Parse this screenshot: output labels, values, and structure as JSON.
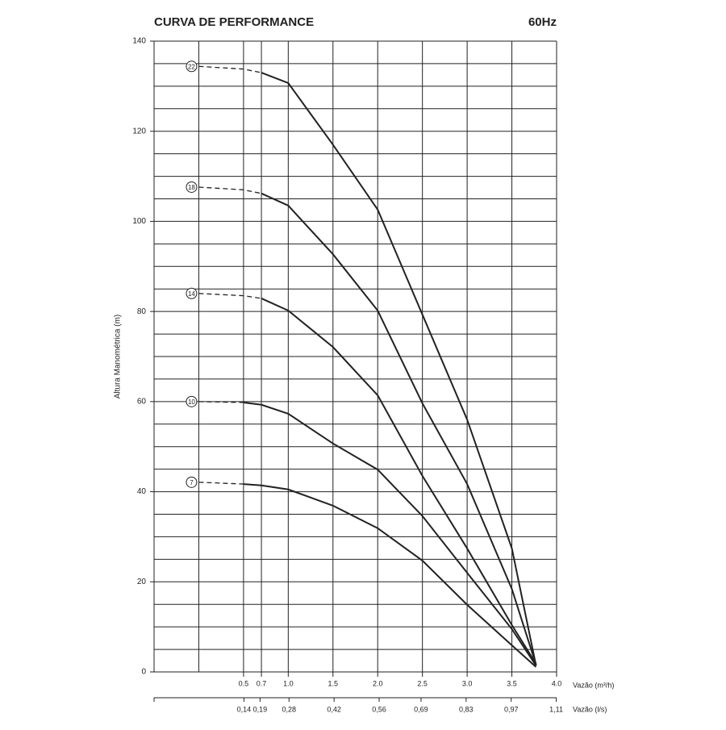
{
  "chart_data": {
    "type": "line",
    "title": "CURVA DE PERFORMANCE",
    "subtitle": "60Hz",
    "y_label": "Altura Manométrica (m)",
    "x_label": "Vazão (m³/h)",
    "x2_label": "Vazão (l/s)",
    "xlim": [
      -0.5,
      4.0
    ],
    "xticks": [
      0.5,
      0.7,
      {
        "value": 1,
        "label": "1.0"
      },
      1.5,
      {
        "value": 2,
        "label": "2.0"
      },
      2.5,
      {
        "value": 3,
        "label": "3.0"
      },
      3.5,
      {
        "value": 4,
        "label": "4.0"
      }
    ],
    "x_extra_grid": [
      0
    ],
    "x2lim": [
      -0.139,
      1.111
    ],
    "x2ticks": [
      {
        "value": 0.14,
        "label": "0,14"
      },
      {
        "value": 0.19,
        "label": "0,19"
      },
      {
        "value": 0.28,
        "label": "0,28"
      },
      {
        "value": 0.42,
        "label": "0,42"
      },
      {
        "value": 0.56,
        "label": "0,56"
      },
      {
        "value": 0.69,
        "label": "0,69"
      },
      {
        "value": 0.83,
        "label": "0,83"
      },
      {
        "value": 0.97,
        "label": "0,97"
      },
      {
        "value": 1.11,
        "label": "1,11"
      }
    ],
    "ylim": [
      0,
      140
    ],
    "yticks": [
      0,
      20,
      40,
      60,
      80,
      100,
      120,
      140
    ],
    "y_grid_step": 5,
    "grid": true,
    "x": [
      0,
      0.5,
      0.7,
      1.0,
      1.5,
      2.0,
      2.5,
      3.0,
      3.5,
      3.77
    ],
    "series": [
      {
        "name": "22",
        "color": "#222222",
        "dash_to": 0.7,
        "values": [
          134.4,
          133.8,
          133,
          130.7,
          117,
          102.6,
          79.3,
          56,
          27.4,
          1.4
        ]
      },
      {
        "name": "18",
        "color": "#222222",
        "dash_to": 0.7,
        "values": [
          107.6,
          107,
          106.2,
          103.5,
          92.7,
          80.2,
          59.6,
          41.7,
          18.4,
          1.6
        ]
      },
      {
        "name": "14",
        "color": "#222222",
        "dash_to": 0.7,
        "values": [
          84,
          83.5,
          82.9,
          80.2,
          72.1,
          61.4,
          43.5,
          27.4,
          10.4,
          1.8
        ]
      },
      {
        "name": "10",
        "color": "#222222",
        "dash_to": 0.5,
        "values": [
          60,
          59.8,
          59.3,
          57.3,
          50.7,
          44.9,
          34.6,
          22,
          9.5,
          1.4
        ]
      },
      {
        "name": "7",
        "color": "#222222",
        "dash_to": 0.5,
        "values": [
          42.1,
          41.7,
          41.4,
          40.5,
          36.9,
          31.9,
          24.7,
          14.9,
          5.9,
          1.1
        ]
      }
    ]
  }
}
